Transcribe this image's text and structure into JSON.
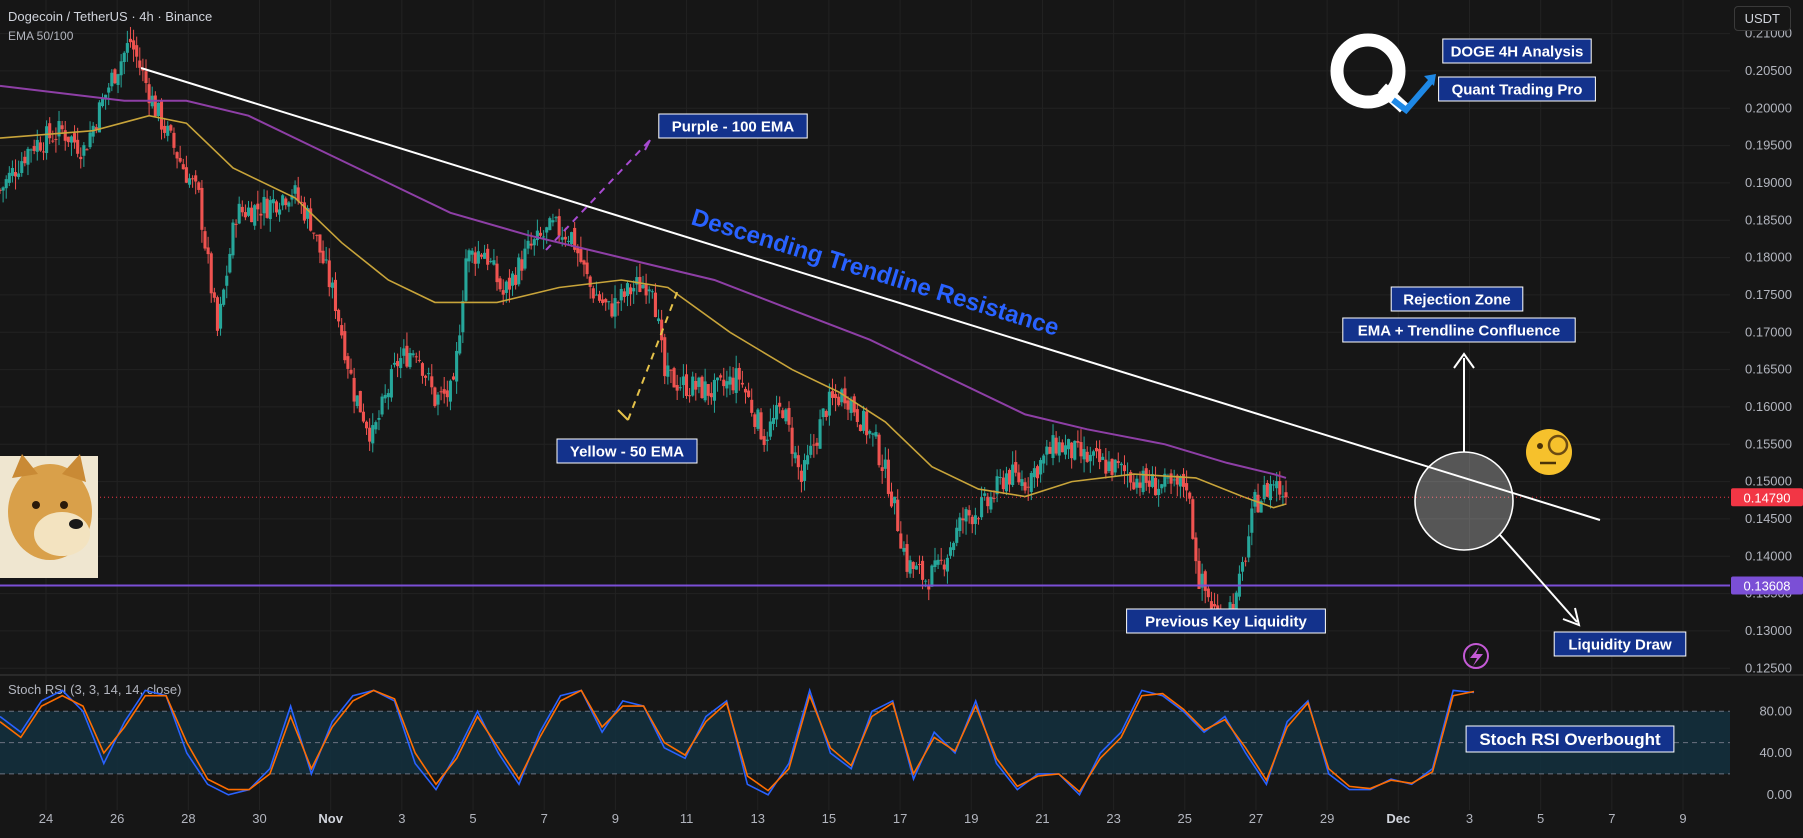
{
  "header": {
    "symbol_line": "Dogecoin / TetherUS · 4h · Binance",
    "indicator_line": "EMA 50/100",
    "currency": "USDT"
  },
  "colors": {
    "background": "#161616",
    "grid": "#222222",
    "up_candle": "#26a69a",
    "down_candle": "#ef5350",
    "ema50": "#c8a43a",
    "ema100": "#8e3fa6",
    "trendline": "#ffffff",
    "liquidity_line": "#7b4fd6",
    "label_bg": "#13328c",
    "trendline_text": "#2962ff",
    "stoch_k": "#2962ff",
    "stoch_d": "#ff6d00",
    "stoch_band": "#13303e",
    "price_tag": "#f23645"
  },
  "branding": {
    "logo_letter": "Q",
    "title_1": "DOGE 4H Analysis",
    "title_2": "Quant Trading Pro"
  },
  "chart_data": [
    {
      "type": "candlestick",
      "series": [
        {
          "name": "EMA 50"
        },
        {
          "name": "EMA 100"
        }
      ],
      "x_axis_labels": [
        "24",
        "26",
        "28",
        "30",
        "Nov",
        "3",
        "5",
        "7",
        "9",
        "11",
        "13",
        "15",
        "17",
        "19",
        "21",
        "23",
        "25",
        "27",
        "29",
        "Dec",
        "3",
        "5",
        "7",
        "9"
      ],
      "y_axis_labels": [
        "0.21000",
        "0.20500",
        "0.20000",
        "0.19500",
        "0.19000",
        "0.18500",
        "0.18000",
        "0.17500",
        "0.17000",
        "0.16500",
        "0.16000",
        "0.15500",
        "0.15000",
        "0.14500",
        "0.14000",
        "0.13500",
        "0.13000",
        "0.12500"
      ],
      "ylim": [
        0.1245,
        0.2145
      ],
      "last_price": "0.14790",
      "key_level": "0.13608",
      "close_path": [
        [
          0.189,
          0
        ],
        [
          0.195,
          10
        ],
        [
          0.197,
          20
        ],
        [
          0.1945,
          27
        ],
        [
          0.204,
          36
        ],
        [
          0.209,
          42
        ],
        [
          0.2,
          50
        ],
        [
          0.193,
          58
        ],
        [
          0.188,
          64
        ],
        [
          0.17,
          70
        ],
        [
          0.186,
          76
        ],
        [
          0.187,
          86
        ],
        [
          0.189,
          94
        ],
        [
          0.185,
          100
        ],
        [
          0.174,
          108
        ],
        [
          0.162,
          114
        ],
        [
          0.156,
          120
        ],
        [
          0.166,
          128
        ],
        [
          0.168,
          134
        ],
        [
          0.161,
          140
        ],
        [
          0.162,
          146
        ],
        [
          0.18,
          150
        ],
        [
          0.181,
          156
        ],
        [
          0.175,
          162
        ],
        [
          0.181,
          170
        ],
        [
          0.184,
          178
        ],
        [
          0.183,
          184
        ],
        [
          0.176,
          190
        ],
        [
          0.173,
          196
        ],
        [
          0.176,
          204
        ],
        [
          0.177,
          210
        ],
        [
          0.164,
          214
        ],
        [
          0.163,
          220
        ],
        [
          0.162,
          230
        ],
        [
          0.164,
          238
        ],
        [
          0.156,
          246
        ],
        [
          0.16,
          252
        ],
        [
          0.15,
          258
        ],
        [
          0.16,
          266
        ],
        [
          0.162,
          272
        ],
        [
          0.155,
          282
        ],
        [
          0.15,
          286
        ],
        [
          0.139,
          292
        ],
        [
          0.137,
          298
        ],
        [
          0.138,
          302
        ],
        [
          0.145,
          310
        ],
        [
          0.147,
          318
        ],
        [
          0.151,
          324
        ],
        [
          0.15,
          330
        ],
        [
          0.153,
          336
        ],
        [
          0.155,
          340
        ],
        [
          0.153,
          350
        ],
        [
          0.152,
          358
        ],
        [
          0.15,
          368
        ],
        [
          0.149,
          378
        ],
        [
          0.15,
          382
        ],
        [
          0.137,
          386
        ],
        [
          0.132,
          392
        ],
        [
          0.134,
          398
        ],
        [
          0.147,
          404
        ],
        [
          0.15,
          410
        ],
        [
          0.1479,
          414
        ]
      ],
      "ema50_path": [
        [
          0.196,
          0
        ],
        [
          0.197,
          30
        ],
        [
          0.199,
          48
        ],
        [
          0.198,
          60
        ],
        [
          0.192,
          75
        ],
        [
          0.188,
          95
        ],
        [
          0.182,
          110
        ],
        [
          0.177,
          125
        ],
        [
          0.174,
          140
        ],
        [
          0.174,
          160
        ],
        [
          0.176,
          180
        ],
        [
          0.177,
          200
        ],
        [
          0.176,
          215
        ],
        [
          0.17,
          235
        ],
        [
          0.165,
          255
        ],
        [
          0.162,
          270
        ],
        [
          0.158,
          285
        ],
        [
          0.152,
          300
        ],
        [
          0.149,
          315
        ],
        [
          0.148,
          330
        ],
        [
          0.15,
          345
        ],
        [
          0.151,
          365
        ],
        [
          0.1505,
          385
        ],
        [
          0.148,
          400
        ],
        [
          0.1465,
          410
        ],
        [
          0.147,
          414
        ]
      ],
      "ema100_path": [
        [
          0.203,
          0
        ],
        [
          0.201,
          40
        ],
        [
          0.201,
          60
        ],
        [
          0.199,
          80
        ],
        [
          0.195,
          100
        ],
        [
          0.191,
          120
        ],
        [
          0.186,
          145
        ],
        [
          0.183,
          170
        ],
        [
          0.181,
          190
        ],
        [
          0.179,
          210
        ],
        [
          0.177,
          230
        ],
        [
          0.173,
          255
        ],
        [
          0.169,
          280
        ],
        [
          0.164,
          305
        ],
        [
          0.159,
          330
        ],
        [
          0.157,
          350
        ],
        [
          0.155,
          375
        ],
        [
          0.1525,
          395
        ],
        [
          0.151,
          410
        ],
        [
          0.1505,
          414
        ]
      ]
    },
    {
      "type": "line",
      "title": "Stoch RSI (3, 3, 14, 14, close)",
      "series": [
        {
          "name": "K",
          "values": [
            75,
            60,
            90,
            100,
            80,
            30,
            70,
            100,
            95,
            40,
            10,
            0,
            5,
            25,
            85,
            20,
            70,
            95,
            100,
            90,
            30,
            5,
            40,
            80,
            40,
            10,
            60,
            95,
            100,
            60,
            90,
            85,
            45,
            35,
            75,
            90,
            10,
            0,
            30,
            100,
            40,
            25,
            80,
            90,
            15,
            60,
            40,
            90,
            30,
            5,
            20,
            20,
            0,
            40,
            60,
            100,
            95,
            80,
            60,
            75,
            40,
            10,
            70,
            90,
            20,
            5,
            5,
            15,
            10,
            25,
            100,
            98
          ]
        },
        {
          "name": "D",
          "values": [
            70,
            55,
            85,
            95,
            85,
            40,
            65,
            95,
            95,
            50,
            15,
            5,
            5,
            20,
            75,
            25,
            65,
            90,
            100,
            92,
            40,
            10,
            35,
            75,
            45,
            15,
            55,
            90,
            100,
            65,
            85,
            85,
            50,
            38,
            70,
            88,
            18,
            4,
            25,
            95,
            45,
            28,
            75,
            88,
            20,
            55,
            42,
            85,
            35,
            8,
            18,
            20,
            3,
            35,
            55,
            95,
            97,
            82,
            62,
            72,
            45,
            14,
            65,
            88,
            25,
            8,
            6,
            14,
            11,
            22,
            95,
            99
          ]
        }
      ],
      "y_axis_labels": [
        "80.00",
        "40.00",
        "0.00"
      ],
      "ylim": [
        -5,
        110
      ],
      "bands": [
        20,
        50,
        80
      ]
    }
  ],
  "annotations": {
    "purple_ema": "Purple - 100 EMA",
    "yellow_ema": "Yellow - 50 EMA",
    "trendline": "Descending Trendline Resistance",
    "rejection_zone": "Rejection Zone",
    "confluence": "EMA + Trendline Confluence",
    "liquidity": "Previous Key Liquidity",
    "liquidity_draw": "Liquidity Draw",
    "stoch_overbought": "Stoch RSI Overbought"
  }
}
